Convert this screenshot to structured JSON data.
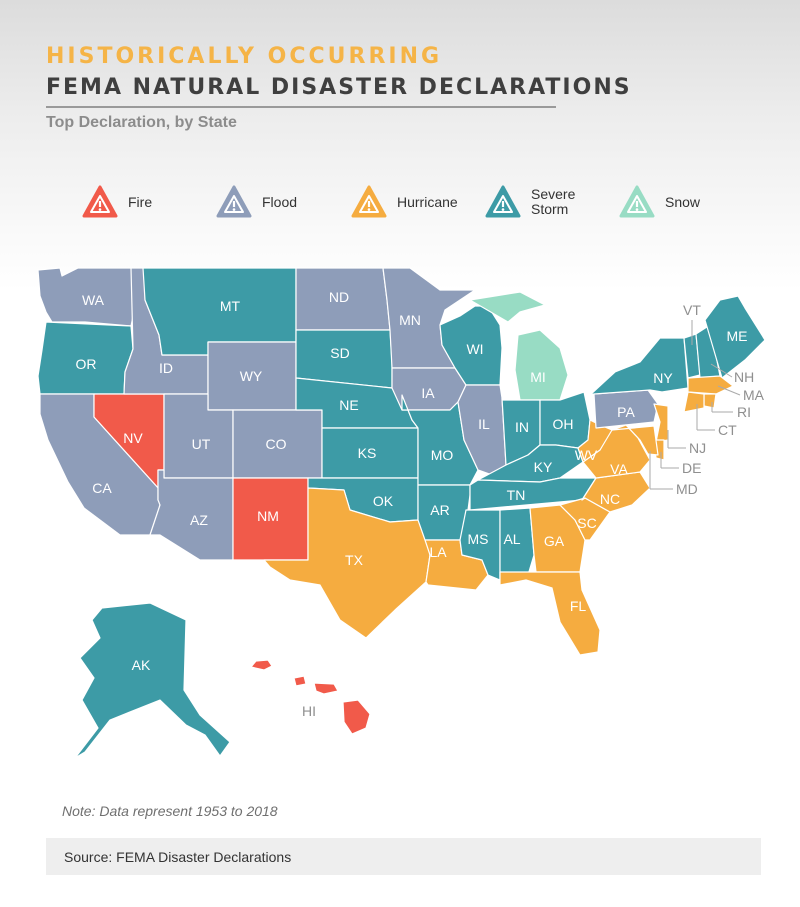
{
  "header": {
    "title_line1": "HISTORICALLY OCCURRING",
    "title_line2": "FEMA NATURAL DISASTER DECLARATIONS",
    "subtitle": "Top Declaration, by State"
  },
  "legend": [
    {
      "key": "fire",
      "label": "Fire",
      "color": "#F15A4A",
      "icon": "warning-triangle-icon"
    },
    {
      "key": "flood",
      "label": "Flood",
      "color": "#8E9DB9",
      "icon": "warning-triangle-icon"
    },
    {
      "key": "hurricane",
      "label": "Hurricane",
      "color": "#F5AC40",
      "icon": "warning-triangle-icon"
    },
    {
      "key": "severe_storm",
      "label": "Severe Storm",
      "color": "#3D9BA6",
      "icon": "warning-triangle-icon"
    },
    {
      "key": "snow",
      "label": "Snow",
      "color": "#98DCC4",
      "icon": "warning-triangle-icon"
    }
  ],
  "states": {
    "WA": "flood",
    "OR": "severe_storm",
    "CA": "flood",
    "NV": "fire",
    "ID": "flood",
    "MT": "severe_storm",
    "WY": "flood",
    "UT": "flood",
    "CO": "flood",
    "AZ": "flood",
    "NM": "fire",
    "ND": "flood",
    "SD": "severe_storm",
    "NE": "severe_storm",
    "KS": "severe_storm",
    "OK": "severe_storm",
    "TX": "hurricane",
    "MN": "flood",
    "IA": "flood",
    "MO": "severe_storm",
    "AR": "severe_storm",
    "LA": "hurricane",
    "WI": "severe_storm",
    "IL": "flood",
    "MI": "snow",
    "IN": "severe_storm",
    "OH": "severe_storm",
    "KY": "severe_storm",
    "TN": "severe_storm",
    "MS": "severe_storm",
    "AL": "severe_storm",
    "GA": "hurricane",
    "FL": "hurricane",
    "SC": "hurricane",
    "NC": "hurricane",
    "VA": "hurricane",
    "WV": "hurricane",
    "PA": "flood",
    "NY": "severe_storm",
    "VT": "severe_storm",
    "NH": "severe_storm",
    "ME": "severe_storm",
    "MA": "hurricane",
    "RI": "hurricane",
    "CT": "hurricane",
    "NJ": "hurricane",
    "DE": "hurricane",
    "MD": "hurricane",
    "AK": "severe_storm",
    "HI": "fire"
  },
  "note": "Note: Data represent 1953 to 2018",
  "source": "Source: FEMA Disaster Declarations"
}
